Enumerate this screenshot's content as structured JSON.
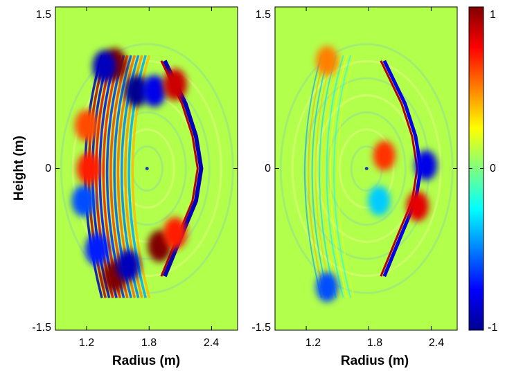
{
  "chart_data": [
    {
      "type": "heatmap",
      "panel": "left",
      "xlabel": "Radius (m)",
      "ylabel": "Height (m)",
      "xlim": [
        0.9,
        2.65
      ],
      "ylim": [
        -1.5,
        1.5
      ],
      "xticks": [
        1.2,
        1.8,
        2.4
      ],
      "xtick_labels": [
        "1.2",
        "1.8",
        "2.4"
      ],
      "yticks": [
        -1.5,
        0,
        1.5
      ],
      "ytick_labels": [
        "-1.5",
        "0",
        "1.5"
      ],
      "background_value": 0.1,
      "features": [
        {
          "kind": "separatrix",
          "value": -0.9,
          "x": [
            1.95,
            2.15,
            2.25,
            2.3,
            2.25,
            2.12,
            1.95
          ]
        },
        {
          "kind": "blob",
          "x": 1.47,
          "y": 0.97,
          "value": 1.0
        },
        {
          "kind": "blob",
          "x": 1.37,
          "y": 0.95,
          "value": -0.9
        },
        {
          "kind": "blob",
          "x": 1.68,
          "y": 0.72,
          "value": -1.0
        },
        {
          "kind": "blob",
          "x": 1.85,
          "y": 0.72,
          "value": -0.8
        },
        {
          "kind": "blob",
          "x": 2.05,
          "y": 0.78,
          "value": 0.85
        },
        {
          "kind": "blob",
          "x": 1.47,
          "y": -1.0,
          "value": 1.0
        },
        {
          "kind": "blob",
          "x": 1.6,
          "y": -0.9,
          "value": -0.9
        },
        {
          "kind": "blob",
          "x": 1.9,
          "y": -0.72,
          "value": 1.0
        },
        {
          "kind": "blob",
          "x": 2.05,
          "y": -0.6,
          "value": 0.7
        },
        {
          "kind": "blob",
          "x": 1.3,
          "y": -0.75,
          "value": -0.7
        },
        {
          "kind": "blob",
          "x": 1.2,
          "y": 0.4,
          "value": 0.6
        },
        {
          "kind": "blob",
          "x": 1.17,
          "y": -0.3,
          "value": -0.6
        },
        {
          "kind": "blob",
          "x": 1.22,
          "y": 0.0,
          "value": 0.7
        }
      ]
    },
    {
      "type": "heatmap",
      "panel": "right",
      "xlabel": "Radius (m)",
      "xlim": [
        0.9,
        2.65
      ],
      "ylim": [
        -1.5,
        1.5
      ],
      "xticks": [
        1.2,
        1.8,
        2.4
      ],
      "xtick_labels": [
        "1.2",
        "1.8",
        "2.4"
      ],
      "yticks": [
        -1.5,
        0,
        1.5
      ],
      "ytick_labels": [
        "-1.5",
        "0",
        "1.5"
      ],
      "background_value": 0.1,
      "features": [
        {
          "kind": "separatrix",
          "value": -0.8,
          "x": [
            1.95,
            2.15,
            2.25,
            2.3,
            2.25,
            2.12,
            1.95
          ]
        },
        {
          "kind": "blob",
          "x": 1.95,
          "y": 0.12,
          "value": 0.65
        },
        {
          "kind": "blob",
          "x": 2.35,
          "y": 0.03,
          "value": -0.8
        },
        {
          "kind": "blob",
          "x": 2.27,
          "y": -0.35,
          "value": 0.8
        },
        {
          "kind": "blob",
          "x": 1.9,
          "y": -0.3,
          "value": -0.35
        },
        {
          "kind": "blob",
          "x": 1.4,
          "y": 1.0,
          "value": 0.5
        },
        {
          "kind": "blob",
          "x": 1.4,
          "y": -1.1,
          "value": -0.6
        }
      ]
    }
  ],
  "colorbar": {
    "ticks": [
      1,
      0,
      -1
    ],
    "tick_labels": [
      "1",
      "0",
      "-1"
    ],
    "range": [
      -1,
      1
    ],
    "colormap": "jet"
  }
}
